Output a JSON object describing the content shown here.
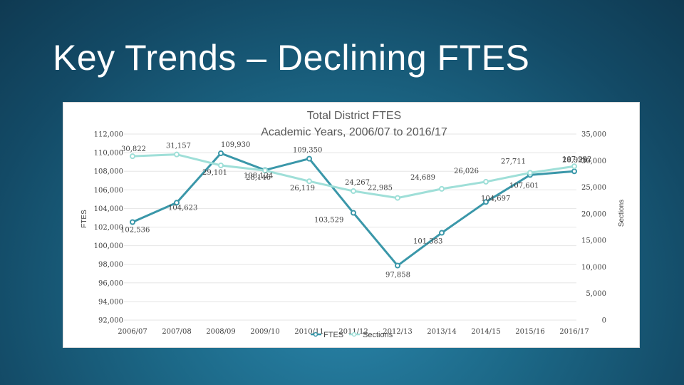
{
  "slide": {
    "title": "Key Trends – Declining FTES"
  },
  "colors": {
    "ftes": "#3a97a9",
    "sections": "#9fdfd8",
    "grid": "#e5e5e5"
  },
  "chart_data": {
    "type": "line",
    "title": "Total District FTES",
    "subtitle": "Academic Years, 2006/07 to 2016/17",
    "categories": [
      "2006/07",
      "2007/08",
      "2008/09",
      "2009/10",
      "2010/11",
      "2011/12",
      "2012/13",
      "2013/14",
      "2014/15",
      "2015/16",
      "2016/17"
    ],
    "ylabel_left": "FTES",
    "ylabel_right": "Sections",
    "ylim_left": [
      92000,
      112000
    ],
    "ylim_right": [
      0,
      35000
    ],
    "yticks_left": [
      "112,000",
      "110,000",
      "108,000",
      "106,000",
      "104,000",
      "102,000",
      "100,000",
      "98,000",
      "96,000",
      "94,000",
      "92,000"
    ],
    "yticks_right": [
      "35,000",
      "30,000",
      "25,000",
      "20,000",
      "15,000",
      "10,000",
      "5,000",
      "0"
    ],
    "legend_position": "bottom",
    "series": [
      {
        "name": "FTES",
        "axis": "left",
        "values": [
          102536,
          104623,
          109930,
          108124,
          109350,
          103529,
          97858,
          101383,
          104697,
          107601,
          107992
        ],
        "labels": [
          "102,536",
          "104,623",
          "109,930",
          "108,124",
          "109,350",
          "103,529",
          "97,858",
          "101,383",
          "104,697",
          "107,601",
          "107,992"
        ]
      },
      {
        "name": "Sections",
        "axis": "right",
        "values": [
          30822,
          31157,
          29101,
          28146,
          26119,
          24267,
          22985,
          24689,
          26026,
          27711,
          28929
        ],
        "labels": [
          "30,822",
          "31,157",
          "29,101",
          "28,146",
          "26,119",
          "24,267",
          "22,985",
          "24,689",
          "26,026",
          "27,711",
          "28,929"
        ]
      }
    ]
  }
}
